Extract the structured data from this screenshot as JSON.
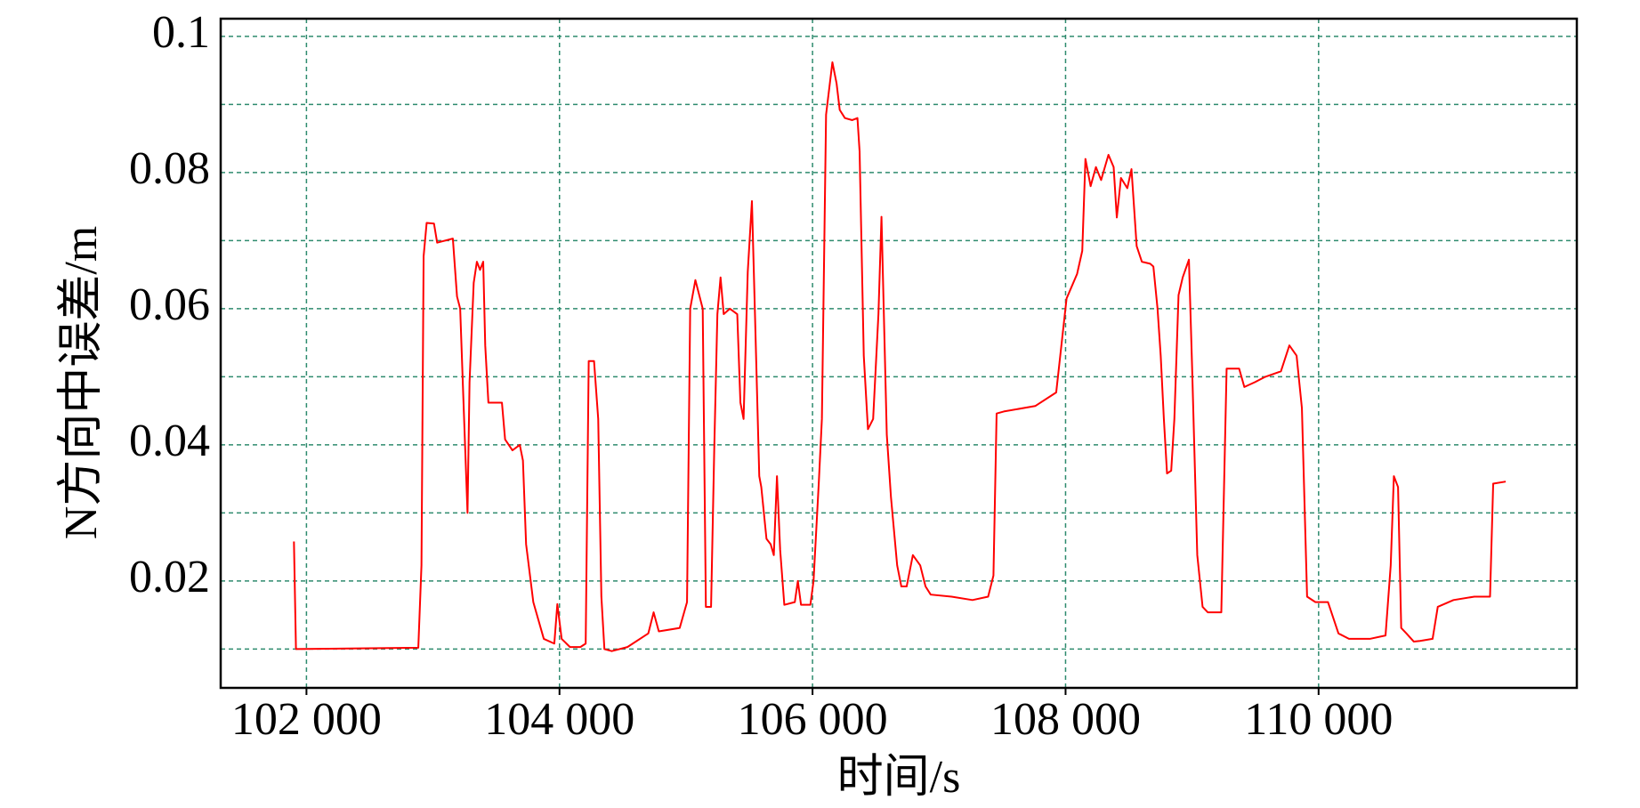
{
  "chart_data": {
    "type": "line",
    "x_label": "时间/s",
    "y_label": "N方向中误差/m",
    "xlim": [
      101322,
      112041
    ],
    "ylim": [
      0.0043,
      0.1026
    ],
    "xticks": [
      {
        "value": 102000,
        "label": "102 000"
      },
      {
        "value": 104000,
        "label": "104 000"
      },
      {
        "value": 106000,
        "label": "106 000"
      },
      {
        "value": 108000,
        "label": "108 000"
      },
      {
        "value": 110000,
        "label": "110 000"
      }
    ],
    "yticks": [
      0.02,
      0.04,
      0.06,
      0.08,
      0.1
    ],
    "yminor": [
      0.01,
      0.03,
      0.05,
      0.07,
      0.09
    ],
    "grid": true,
    "series": [
      {
        "color": "#ff0000",
        "x": [
          101901,
          101917,
          102884,
          102909,
          102926,
          102950,
          103008,
          103033,
          103157,
          103190,
          103215,
          103240,
          103273,
          103289,
          103322,
          103347,
          103372,
          103397,
          103413,
          103438,
          103545,
          103570,
          103628,
          103686,
          103711,
          103736,
          103793,
          103876,
          103959,
          103983,
          104017,
          104083,
          104165,
          104207,
          104231,
          104273,
          104306,
          104331,
          104355,
          104413,
          104537,
          104702,
          104744,
          104785,
          104950,
          105008,
          105033,
          105074,
          105132,
          105157,
          105198,
          105223,
          105248,
          105273,
          105298,
          105347,
          105405,
          105430,
          105455,
          105488,
          105521,
          105545,
          105579,
          105595,
          105636,
          105669,
          105694,
          105719,
          105744,
          105777,
          105860,
          105884,
          105909,
          105983,
          106008,
          106050,
          106074,
          106107,
          106157,
          106190,
          106215,
          106256,
          106314,
          106355,
          106372,
          106405,
          106438,
          106479,
          106521,
          106545,
          106587,
          106620,
          106669,
          106702,
          106744,
          106793,
          106851,
          106893,
          106934,
          107099,
          107264,
          107388,
          107430,
          107455,
          107512,
          107760,
          107926,
          107967,
          108008,
          108091,
          108132,
          108157,
          108198,
          108240,
          108281,
          108339,
          108380,
          108405,
          108438,
          108488,
          108521,
          108562,
          108603,
          108669,
          108694,
          108727,
          108752,
          108777,
          108802,
          108835,
          108860,
          108893,
          108926,
          108975,
          109000,
          109041,
          109083,
          109124,
          109231,
          109273,
          109372,
          109413,
          109496,
          109579,
          109702,
          109769,
          109826,
          109868,
          109909,
          109975,
          110074,
          110157,
          110240,
          110405,
          110529,
          110570,
          110595,
          110628,
          110653,
          110694,
          110752,
          110802,
          110901,
          110942,
          111066,
          111231,
          111355,
          111380,
          111479
        ],
        "values": [
          0.0258,
          0.01,
          0.0102,
          0.0223,
          0.0677,
          0.0726,
          0.0725,
          0.0697,
          0.0703,
          0.0618,
          0.06,
          0.0469,
          0.03,
          0.0492,
          0.0638,
          0.0669,
          0.0657,
          0.0669,
          0.0546,
          0.0462,
          0.0462,
          0.0408,
          0.0392,
          0.04,
          0.0377,
          0.0254,
          0.0169,
          0.0115,
          0.0108,
          0.0166,
          0.0115,
          0.0103,
          0.0103,
          0.0108,
          0.0523,
          0.0523,
          0.0438,
          0.0177,
          0.01,
          0.0097,
          0.0103,
          0.0123,
          0.0154,
          0.0126,
          0.0131,
          0.0169,
          0.06,
          0.0642,
          0.06,
          0.0162,
          0.0162,
          0.0392,
          0.0592,
          0.0646,
          0.0592,
          0.06,
          0.0592,
          0.0462,
          0.0438,
          0.0654,
          0.0758,
          0.0592,
          0.0354,
          0.0338,
          0.0262,
          0.0254,
          0.0238,
          0.0354,
          0.0246,
          0.0165,
          0.0169,
          0.02,
          0.0165,
          0.0165,
          0.02,
          0.0346,
          0.0438,
          0.0885,
          0.0962,
          0.0931,
          0.0892,
          0.088,
          0.0877,
          0.088,
          0.0831,
          0.0531,
          0.0423,
          0.0438,
          0.0592,
          0.0735,
          0.0415,
          0.0323,
          0.0223,
          0.0192,
          0.0192,
          0.0238,
          0.0223,
          0.0192,
          0.018,
          0.0177,
          0.0172,
          0.0177,
          0.0208,
          0.0446,
          0.0449,
          0.0457,
          0.0477,
          0.0546,
          0.0615,
          0.0651,
          0.0685,
          0.082,
          0.078,
          0.0808,
          0.0789,
          0.0826,
          0.0808,
          0.0734,
          0.0792,
          0.0777,
          0.0805,
          0.0692,
          0.0669,
          0.0666,
          0.0662,
          0.06,
          0.0531,
          0.0438,
          0.0358,
          0.0362,
          0.0438,
          0.062,
          0.0646,
          0.0672,
          0.0515,
          0.0238,
          0.0162,
          0.0154,
          0.0154,
          0.0512,
          0.0512,
          0.0485,
          0.0492,
          0.05,
          0.0508,
          0.0546,
          0.0531,
          0.0454,
          0.0177,
          0.0169,
          0.0169,
          0.0123,
          0.0115,
          0.0115,
          0.012,
          0.0223,
          0.0354,
          0.0338,
          0.0131,
          0.0123,
          0.0111,
          0.0112,
          0.0115,
          0.0162,
          0.0172,
          0.0177,
          0.0177,
          0.0343,
          0.0346
        ]
      }
    ]
  }
}
